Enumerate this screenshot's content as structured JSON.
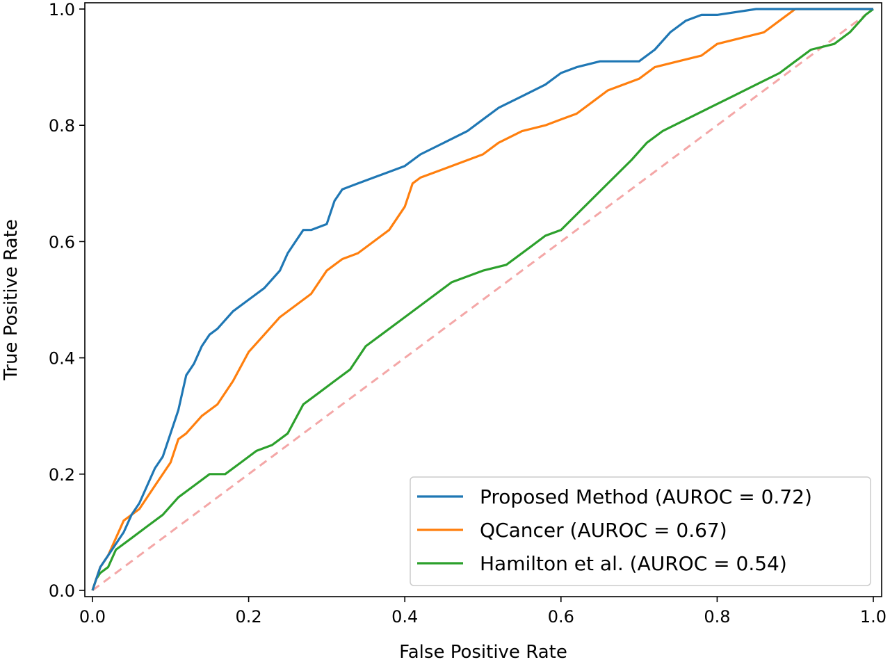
{
  "chart_data": {
    "type": "line",
    "title": "",
    "xlabel": "False Positive Rate",
    "ylabel": "True Positive Rate",
    "xlim": [
      0.0,
      1.0
    ],
    "ylim": [
      0.0,
      1.0
    ],
    "xticks": [
      "0.0",
      "0.2",
      "0.4",
      "0.6",
      "0.8",
      "1.0"
    ],
    "yticks": [
      "0.0",
      "0.2",
      "0.4",
      "0.6",
      "0.8",
      "1.0"
    ],
    "grid": false,
    "legend_position": "bottom-right",
    "series": [
      {
        "name": "Proposed Method (AUROC = 0.72)",
        "color": "#1f77b4",
        "x": [
          0.0,
          0.005,
          0.01,
          0.02,
          0.03,
          0.04,
          0.05,
          0.06,
          0.07,
          0.08,
          0.09,
          0.1,
          0.11,
          0.12,
          0.13,
          0.14,
          0.15,
          0.16,
          0.18,
          0.2,
          0.22,
          0.24,
          0.25,
          0.26,
          0.27,
          0.28,
          0.3,
          0.31,
          0.32,
          0.34,
          0.36,
          0.38,
          0.4,
          0.42,
          0.45,
          0.48,
          0.5,
          0.52,
          0.55,
          0.58,
          0.6,
          0.62,
          0.65,
          0.68,
          0.7,
          0.72,
          0.74,
          0.76,
          0.78,
          0.8,
          0.85,
          0.9,
          0.95,
          1.0
        ],
        "y": [
          0.0,
          0.02,
          0.04,
          0.06,
          0.08,
          0.1,
          0.13,
          0.15,
          0.18,
          0.21,
          0.23,
          0.27,
          0.31,
          0.37,
          0.39,
          0.42,
          0.44,
          0.45,
          0.48,
          0.5,
          0.52,
          0.55,
          0.58,
          0.6,
          0.62,
          0.62,
          0.63,
          0.67,
          0.69,
          0.7,
          0.71,
          0.72,
          0.73,
          0.75,
          0.77,
          0.79,
          0.81,
          0.83,
          0.85,
          0.87,
          0.89,
          0.9,
          0.91,
          0.91,
          0.91,
          0.93,
          0.96,
          0.98,
          0.99,
          0.99,
          1.0,
          1.0,
          1.0,
          1.0
        ]
      },
      {
        "name": "QCancer (AUROC = 0.67)",
        "color": "#ff7f0e",
        "x": [
          0.0,
          0.005,
          0.01,
          0.02,
          0.03,
          0.04,
          0.05,
          0.06,
          0.08,
          0.1,
          0.11,
          0.12,
          0.14,
          0.16,
          0.18,
          0.2,
          0.22,
          0.24,
          0.26,
          0.28,
          0.3,
          0.31,
          0.32,
          0.34,
          0.36,
          0.38,
          0.4,
          0.41,
          0.42,
          0.44,
          0.46,
          0.5,
          0.52,
          0.55,
          0.58,
          0.6,
          0.62,
          0.64,
          0.66,
          0.7,
          0.72,
          0.75,
          0.78,
          0.8,
          0.83,
          0.86,
          0.88,
          0.9,
          0.95,
          1.0
        ],
        "y": [
          0.0,
          0.02,
          0.04,
          0.06,
          0.09,
          0.12,
          0.13,
          0.14,
          0.18,
          0.22,
          0.26,
          0.27,
          0.3,
          0.32,
          0.36,
          0.41,
          0.44,
          0.47,
          0.49,
          0.51,
          0.55,
          0.56,
          0.57,
          0.58,
          0.6,
          0.62,
          0.66,
          0.7,
          0.71,
          0.72,
          0.73,
          0.75,
          0.77,
          0.79,
          0.8,
          0.81,
          0.82,
          0.84,
          0.86,
          0.88,
          0.9,
          0.91,
          0.92,
          0.94,
          0.95,
          0.96,
          0.98,
          1.0,
          1.0,
          1.0
        ]
      },
      {
        "name": "Hamilton et al. (AUROC = 0.54)",
        "color": "#2ca02c",
        "x": [
          0.0,
          0.005,
          0.01,
          0.02,
          0.03,
          0.05,
          0.07,
          0.09,
          0.11,
          0.13,
          0.15,
          0.17,
          0.19,
          0.21,
          0.23,
          0.25,
          0.27,
          0.29,
          0.31,
          0.33,
          0.35,
          0.37,
          0.4,
          0.43,
          0.46,
          0.5,
          0.53,
          0.56,
          0.58,
          0.6,
          0.63,
          0.66,
          0.69,
          0.71,
          0.73,
          0.76,
          0.79,
          0.82,
          0.85,
          0.88,
          0.9,
          0.92,
          0.95,
          0.97,
          0.99,
          1.0
        ],
        "y": [
          0.0,
          0.02,
          0.03,
          0.04,
          0.07,
          0.09,
          0.11,
          0.13,
          0.16,
          0.18,
          0.2,
          0.2,
          0.22,
          0.24,
          0.25,
          0.27,
          0.32,
          0.34,
          0.36,
          0.38,
          0.42,
          0.44,
          0.47,
          0.5,
          0.53,
          0.55,
          0.56,
          0.59,
          0.61,
          0.62,
          0.66,
          0.7,
          0.74,
          0.77,
          0.79,
          0.81,
          0.83,
          0.85,
          0.87,
          0.89,
          0.91,
          0.93,
          0.94,
          0.96,
          0.99,
          1.0
        ]
      },
      {
        "name": "",
        "color": "#f4a7a7",
        "style": "dashed",
        "x": [
          0.0,
          1.0
        ],
        "y": [
          0.0,
          1.0
        ]
      }
    ]
  }
}
